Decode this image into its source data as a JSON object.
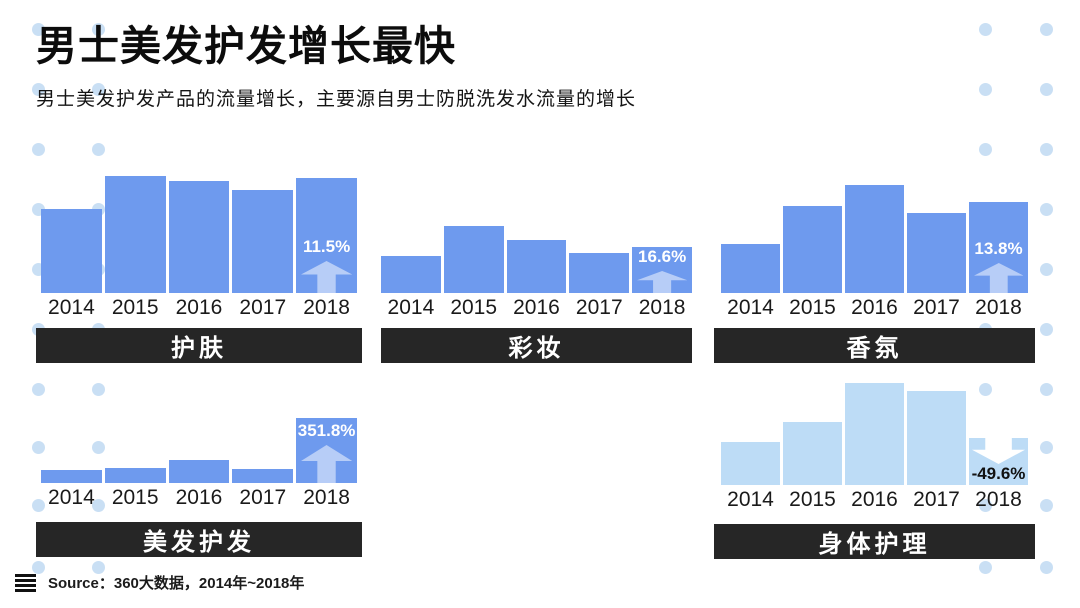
{
  "page": {
    "title": "男士美发护发增长最快",
    "subtitle": "男士美发护发产品的流量增长，主要源自男士防脱洗发水流量的增长",
    "source": "Source：360大数据，2014年~2018年"
  },
  "colors": {
    "bar_blue": "#6e9aee",
    "bar_light_blue": "#bddcf6",
    "label_bar_bg": "#262626",
    "dot": "#c9dff4",
    "up_arrow": "rgba(255,255,255,0.5)",
    "down_arrow": "#ffffff"
  },
  "chart_data": [
    {
      "type": "bar",
      "title": "护肤",
      "categories": [
        "2014",
        "2015",
        "2016",
        "2017",
        "2018"
      ],
      "values": [
        84,
        117,
        112,
        103,
        115
      ],
      "value_scale": "bar pixel heights (no y-axis shown)",
      "growth_2018": "11.5%",
      "trend": "up",
      "bar_color": "#6e9aee",
      "xlabel": "",
      "ylabel": "",
      "grid": false,
      "legend": false
    },
    {
      "type": "bar",
      "title": "彩妆",
      "categories": [
        "2014",
        "2015",
        "2016",
        "2017",
        "2018"
      ],
      "values": [
        37,
        67,
        53,
        40,
        46
      ],
      "value_scale": "bar pixel heights (no y-axis shown)",
      "growth_2018": "16.6%",
      "trend": "up",
      "bar_color": "#6e9aee",
      "xlabel": "",
      "ylabel": "",
      "grid": false,
      "legend": false
    },
    {
      "type": "bar",
      "title": "香氛",
      "categories": [
        "2014",
        "2015",
        "2016",
        "2017",
        "2018"
      ],
      "values": [
        49,
        87,
        108,
        80,
        91
      ],
      "value_scale": "bar pixel heights (no y-axis shown)",
      "growth_2018": "13.8%",
      "trend": "up",
      "bar_color": "#6e9aee",
      "xlabel": "",
      "ylabel": "",
      "grid": false,
      "legend": false
    },
    {
      "type": "bar",
      "title": "美发护发",
      "categories": [
        "2014",
        "2015",
        "2016",
        "2017",
        "2018"
      ],
      "values": [
        13,
        15,
        23,
        14,
        65
      ],
      "value_scale": "bar pixel heights (no y-axis shown)",
      "growth_2018": "351.8%",
      "trend": "up",
      "bar_color": "#6e9aee",
      "xlabel": "",
      "ylabel": "",
      "grid": false,
      "legend": false
    },
    {
      "type": "bar",
      "title": "身体护理",
      "categories": [
        "2014",
        "2015",
        "2016",
        "2017",
        "2018"
      ],
      "values": [
        43,
        63,
        102,
        94,
        47
      ],
      "value_scale": "bar pixel heights (no y-axis shown)",
      "growth_2018": "-49.6%",
      "trend": "down",
      "bar_color": "#bddcf6",
      "xlabel": "",
      "ylabel": "",
      "grid": false,
      "legend": false
    }
  ]
}
